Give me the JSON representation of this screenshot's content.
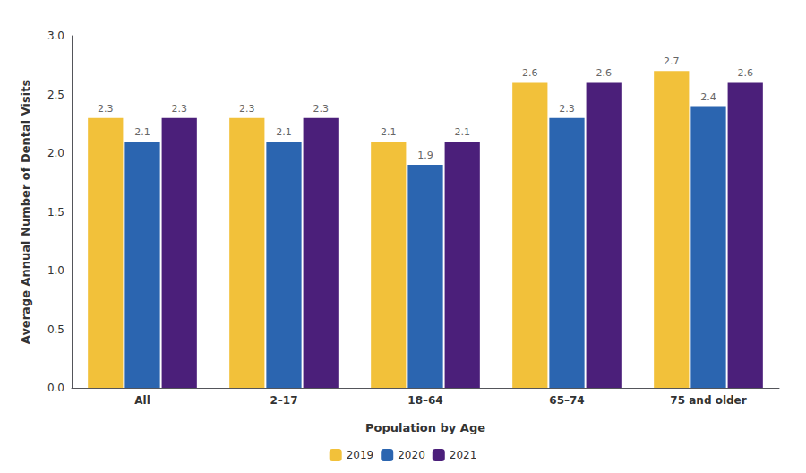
{
  "chart_data": {
    "type": "bar",
    "categories": [
      "All",
      "2–17",
      "18–64",
      "65–74",
      "75 and older"
    ],
    "series": [
      {
        "name": "2019",
        "color": "#F2C13A",
        "values": [
          2.3,
          2.3,
          2.1,
          2.6,
          2.7
        ]
      },
      {
        "name": "2020",
        "color": "#2B65B0",
        "values": [
          2.1,
          2.1,
          1.9,
          2.3,
          2.4
        ]
      },
      {
        "name": "2021",
        "color": "#4B1F7A",
        "values": [
          2.3,
          2.3,
          2.1,
          2.6,
          2.6
        ]
      }
    ],
    "xlabel": "Population by Age",
    "ylabel": "Average Annual Number of Dental Visits",
    "ylim": [
      0.0,
      3.0
    ],
    "yticks": [
      {
        "value": 0.0,
        "label": "0.0"
      },
      0.5,
      {
        "value": 1.0,
        "label": "1.0"
      },
      1.5,
      {
        "value": 2.0,
        "label": "2.0"
      },
      2.5,
      {
        "value": 3.0,
        "label": "3.0"
      }
    ],
    "grid": false,
    "legend": "bottom",
    "data_labels": true
  }
}
